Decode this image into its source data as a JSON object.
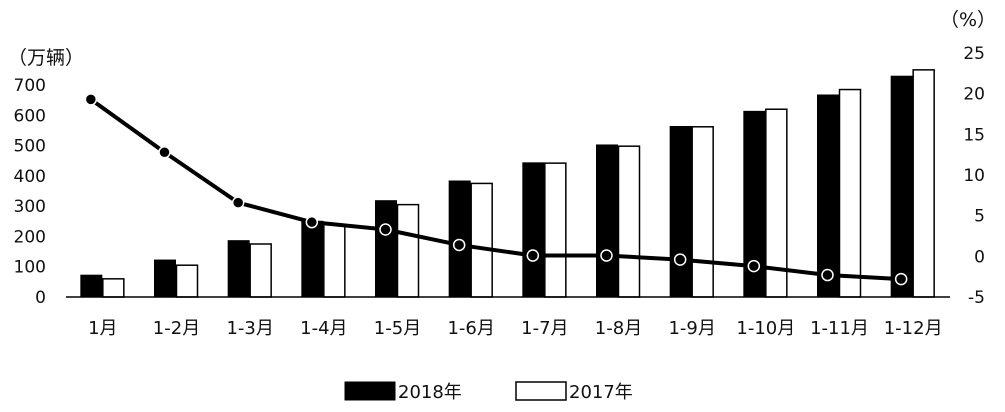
{
  "chart_data": {
    "type": "bar+line",
    "categories": [
      "1月",
      "1-2月",
      "1-3月",
      "1-4月",
      "1-5月",
      "1-6月",
      "1-7月",
      "1-8月",
      "1-9月",
      "1-10月",
      "1-11月",
      "1-12月"
    ],
    "series": [
      {
        "name": "2018年",
        "type": "bar",
        "axis": "left",
        "color": "#000000",
        "values": [
          72,
          122,
          186,
          250,
          318,
          383,
          443,
          502,
          563,
          613,
          667,
          729
        ]
      },
      {
        "name": "2017年",
        "type": "bar",
        "axis": "left",
        "color": "#ffffff",
        "values": [
          60,
          105,
          175,
          240,
          305,
          375,
          442,
          498,
          562,
          620,
          685,
          750
        ]
      },
      {
        "type": "line",
        "axis": "right",
        "color": "#000000",
        "values": [
          19.3,
          12.8,
          6.6,
          4.2,
          3.3,
          1.4,
          0.1,
          0.1,
          -0.4,
          -1.2,
          -2.3,
          -2.8
        ]
      }
    ],
    "y_left": {
      "label": "（万辆）",
      "ylim": [
        0,
        760
      ],
      "ticks": [
        0,
        100,
        200,
        300,
        400,
        500,
        600,
        700
      ]
    },
    "y_right": {
      "label": "（%）",
      "ylim": [
        -5,
        25
      ],
      "ticks": [
        -5,
        0,
        5,
        10,
        15,
        20,
        25
      ]
    },
    "legend": {
      "position": "bottom-center",
      "items": [
        "2018年",
        "2017年"
      ]
    },
    "grid": false
  }
}
